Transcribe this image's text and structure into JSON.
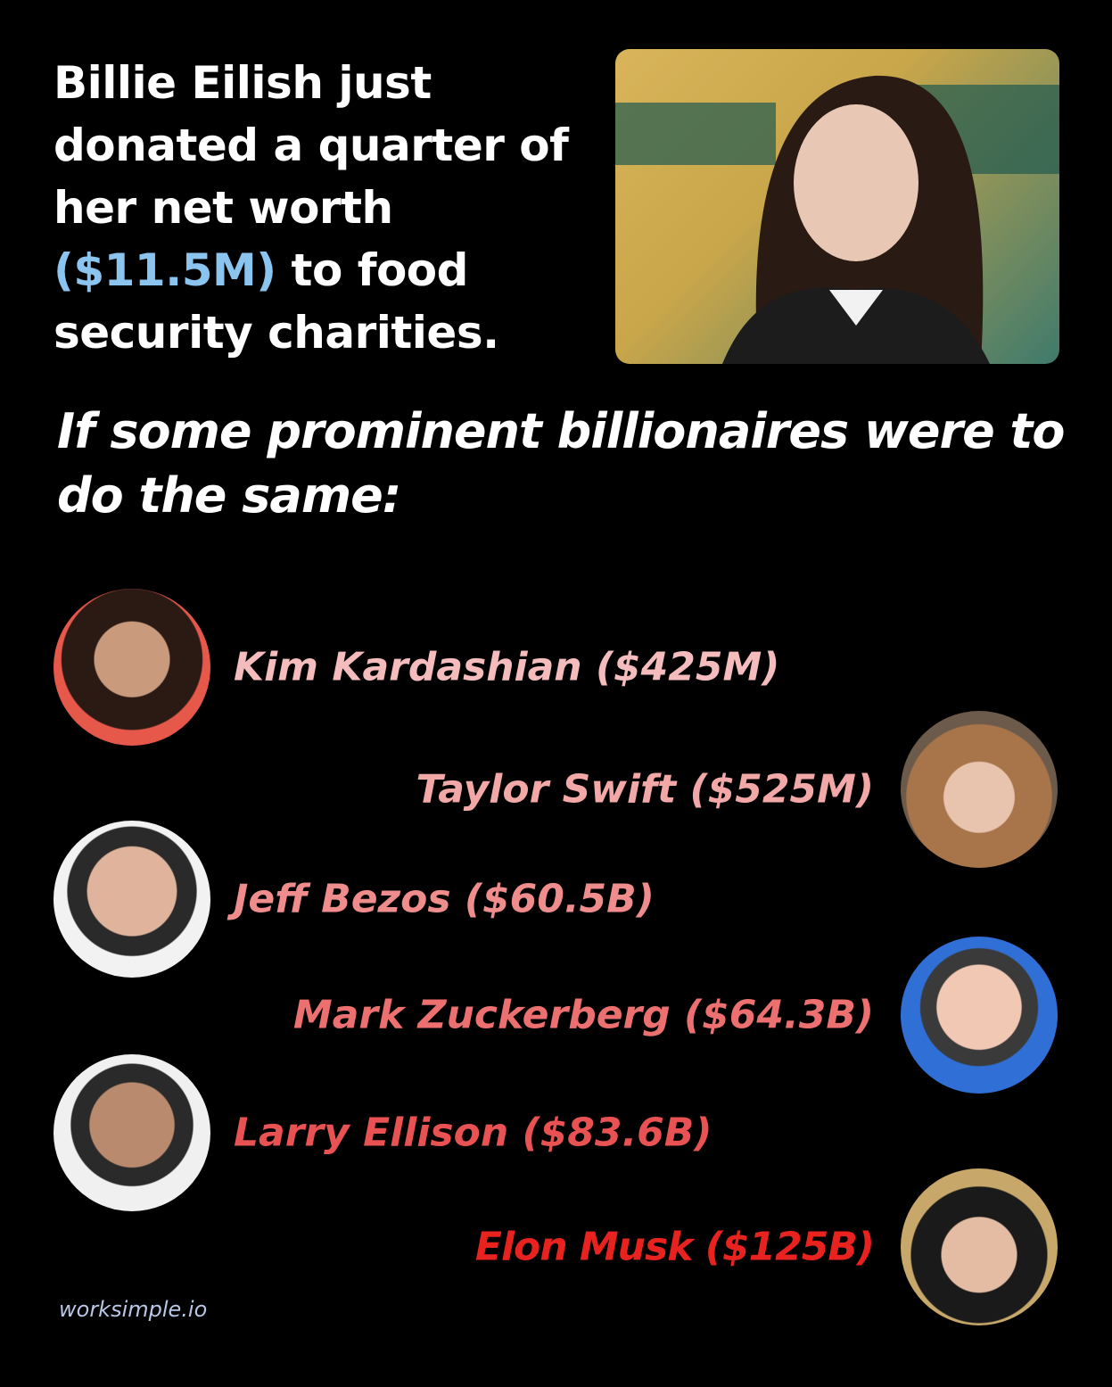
{
  "headline": {
    "before": "Billie Eilish just donated a quarter of her net worth",
    "highlight": "($11.5M)",
    "after": "to food security charities."
  },
  "subheading": "If some prominent billionaires were to do the same:",
  "people": [
    {
      "label": "Kim Kardashian ($425M)"
    },
    {
      "label": "Taylor Swift ($525M)"
    },
    {
      "label": "Jeff Bezos ($60.5B)"
    },
    {
      "label": "Mark Zuckerberg ($64.3B)"
    },
    {
      "label": "Larry Ellison ($83.6B)"
    },
    {
      "label": "Elon Musk ($125B)"
    }
  ],
  "footer": "worksimple.io"
}
